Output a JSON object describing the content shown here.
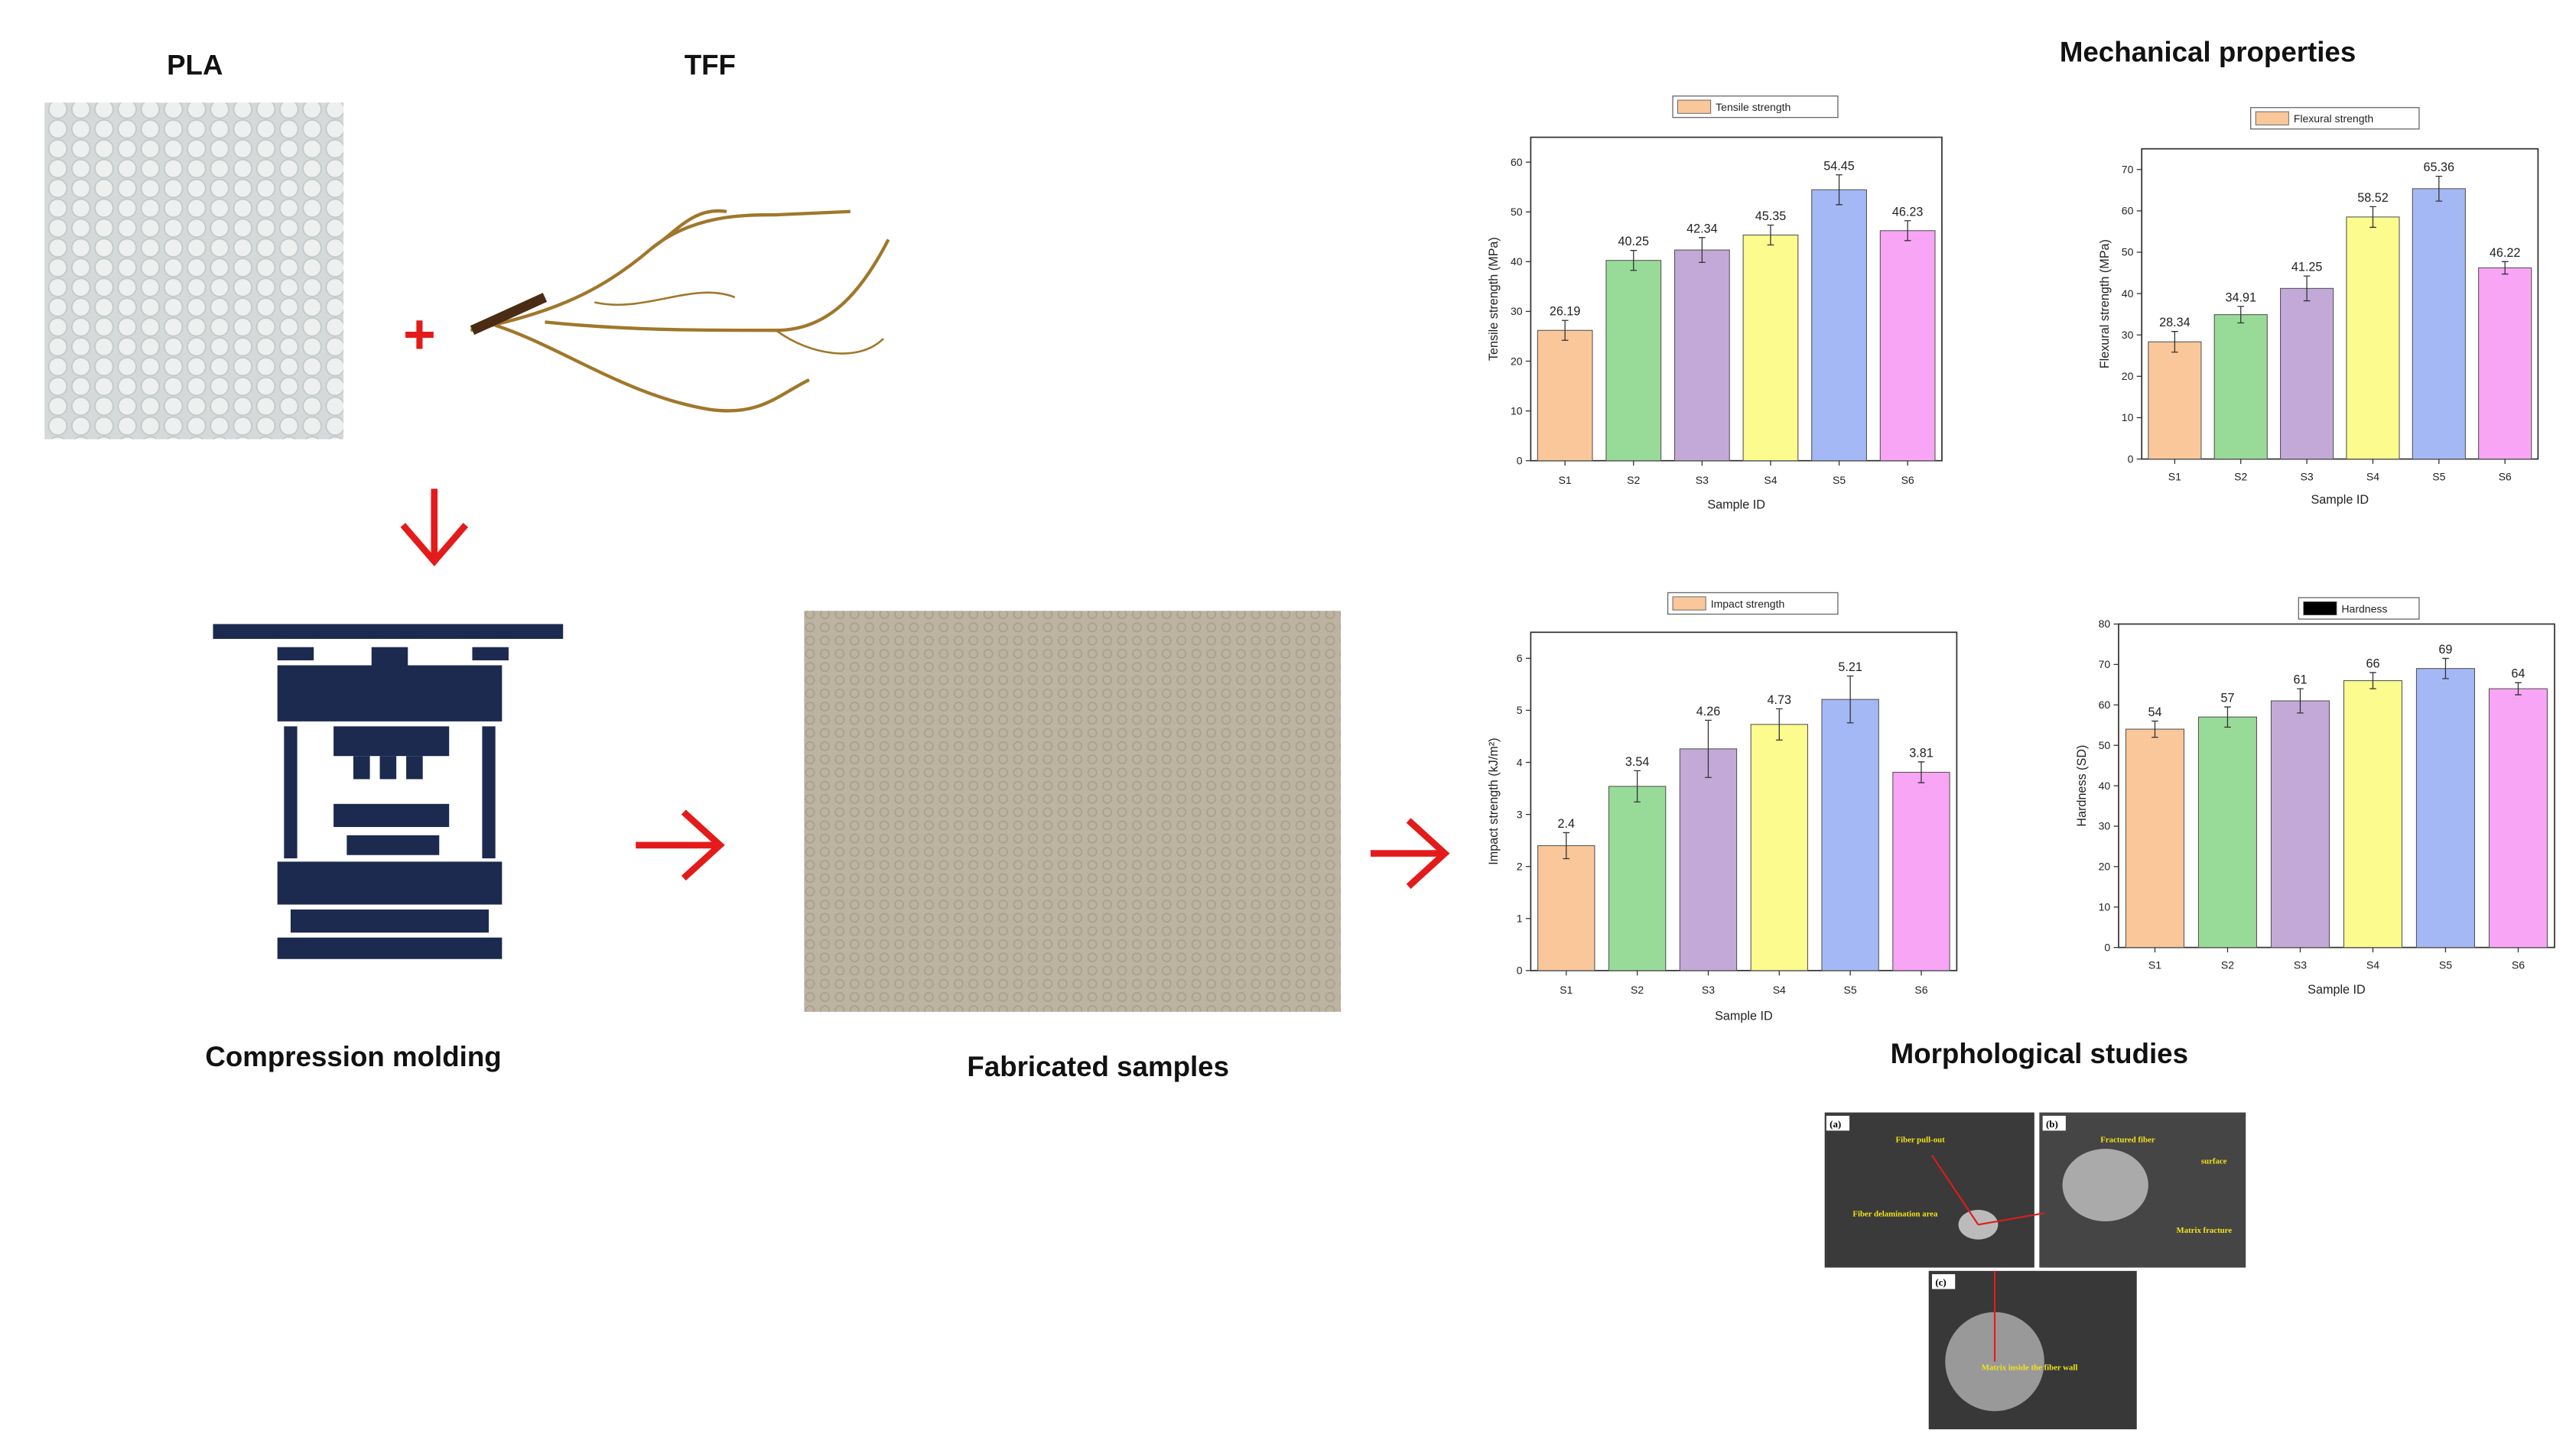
{
  "labels": {
    "pla": "PLA",
    "tff": "TFF",
    "compression": "Compression molding",
    "fabricated": "Fabricated samples",
    "mechanical": "Mechanical properties",
    "morphological": "Morphological studies"
  },
  "sem": {
    "a": "(a)",
    "b": "(b)",
    "c": "(c)",
    "pullout": "Fiber pull-out",
    "delamination": "Fiber delamination area",
    "fractured": "Fractured fiber",
    "surface": "surface",
    "matrix_fracture": "Matrix fracture",
    "matrix_inside": "Matrix inside the fiber wall"
  },
  "chart_data": [
    {
      "type": "bar",
      "categories": [
        "S1",
        "S2",
        "S3",
        "S4",
        "S5",
        "S6"
      ],
      "series": [
        {
          "name": "Tensile strength",
          "color": "#f9c79a",
          "values": [
            26.19,
            40.25,
            42.34,
            45.35,
            54.45,
            46.23
          ],
          "errors": [
            2,
            2,
            2.5,
            2,
            3,
            2
          ]
        }
      ],
      "bar_colors": [
        "#f9c79a",
        "#98db98",
        "#c3a9d8",
        "#fbfb8e",
        "#a4b8f5",
        "#f8a5f5"
      ],
      "ylim": [
        0,
        65
      ],
      "yticks": [
        0,
        10,
        20,
        30,
        40,
        50,
        60
      ],
      "x_label": "Sample ID",
      "y_label": "Tensile strength (MPa)"
    },
    {
      "type": "bar",
      "categories": [
        "S1",
        "S2",
        "S3",
        "S4",
        "S5",
        "S6"
      ],
      "series": [
        {
          "name": "Flexural strength",
          "color": "#f9c79a",
          "values": [
            28.34,
            34.91,
            41.25,
            58.52,
            65.36,
            46.22
          ],
          "errors": [
            2.5,
            2,
            3,
            2.5,
            3,
            1.5
          ]
        }
      ],
      "bar_colors": [
        "#f9c79a",
        "#98db98",
        "#c3a9d8",
        "#fbfb8e",
        "#a4b8f5",
        "#f8a5f5"
      ],
      "ylim": [
        0,
        75
      ],
      "yticks": [
        0,
        10,
        20,
        30,
        40,
        50,
        60,
        70
      ],
      "x_label": "Sample ID",
      "y_label": "Flexural strength (MPa)"
    },
    {
      "type": "bar",
      "categories": [
        "S1",
        "S2",
        "S3",
        "S4",
        "S5",
        "S6"
      ],
      "series": [
        {
          "name": "Impact strength",
          "color": "#f9c79a",
          "values": [
            2.4,
            3.54,
            4.26,
            4.73,
            5.21,
            3.81
          ],
          "errors": [
            0.25,
            0.3,
            0.55,
            0.3,
            0.45,
            0.2
          ]
        }
      ],
      "bar_colors": [
        "#f9c79a",
        "#98db98",
        "#c3a9d8",
        "#fbfb8e",
        "#a4b8f5",
        "#f8a5f5"
      ],
      "ylim": [
        0,
        6.5
      ],
      "yticks": [
        0,
        1,
        2,
        3,
        4,
        5,
        6
      ],
      "x_label": "Sample ID",
      "y_label": "Impact strength (kJ/m²)"
    },
    {
      "type": "bar",
      "categories": [
        "S1",
        "S2",
        "S3",
        "S4",
        "S5",
        "S6"
      ],
      "series": [
        {
          "name": "Hardness",
          "color": "#000000",
          "values": [
            54,
            57,
            61,
            66,
            69,
            64
          ],
          "errors": [
            2,
            2.5,
            3,
            2,
            2.5,
            1.5
          ]
        }
      ],
      "bar_colors": [
        "#f9c79a",
        "#98db98",
        "#c3a9d8",
        "#fbfb8e",
        "#a4b8f5",
        "#f8a5f5"
      ],
      "ylim": [
        0,
        80
      ],
      "yticks": [
        0,
        10,
        20,
        30,
        40,
        50,
        60,
        70,
        80
      ],
      "x_label": "Sample ID",
      "y_label": "Hardness (SD)"
    }
  ]
}
